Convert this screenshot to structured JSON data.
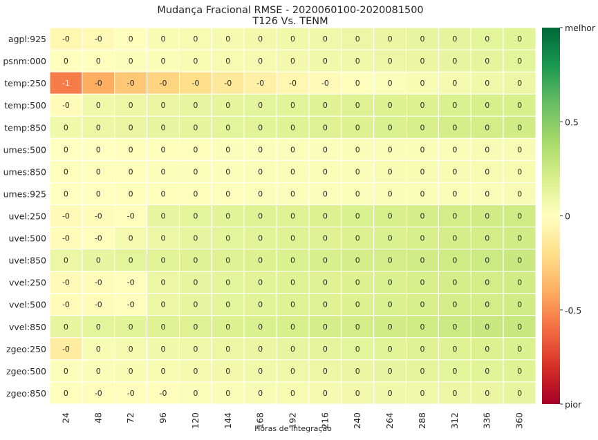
{
  "chart_data": {
    "type": "heatmap",
    "title": "Mudança Fracional RMSE - 2020060100-2020081500",
    "subtitle": "T126 Vs. TENM",
    "xlabel": "Horas de Integração",
    "x_categories": [
      "24",
      "48",
      "72",
      "96",
      "120",
      "144",
      "168",
      "192",
      "216",
      "240",
      "264",
      "288",
      "312",
      "336",
      "360"
    ],
    "y_categories": [
      "agpl:925",
      "psnm:000",
      "temp:250",
      "temp:500",
      "temp:850",
      "umes:500",
      "umes:850",
      "umes:925",
      "uvel:250",
      "uvel:500",
      "uvel:850",
      "vvel:250",
      "vvel:500",
      "vvel:850",
      "zgeo:250",
      "zgeo:500",
      "zgeo:850"
    ],
    "annotations": [
      [
        "-0",
        "-0",
        "0",
        "0",
        "0",
        "0",
        "0",
        "0",
        "0",
        "0",
        "0",
        "0",
        "0",
        "0",
        "0"
      ],
      [
        "0",
        "0",
        "0",
        "0",
        "0",
        "0",
        "0",
        "0",
        "0",
        "0",
        "0",
        "0",
        "0",
        "0",
        "0"
      ],
      [
        "-1",
        "-0",
        "-0",
        "-0",
        "-0",
        "-0",
        "-0",
        "-0",
        "-0",
        "0",
        "0",
        "0",
        "0",
        "0",
        "0"
      ],
      [
        "-0",
        "0",
        "0",
        "0",
        "0",
        "0",
        "0",
        "0",
        "0",
        "0",
        "0",
        "0",
        "0",
        "0",
        "0"
      ],
      [
        "0",
        "0",
        "0",
        "0",
        "0",
        "0",
        "0",
        "0",
        "0",
        "0",
        "0",
        "0",
        "0",
        "0",
        "0"
      ],
      [
        "0",
        "0",
        "0",
        "0",
        "0",
        "0",
        "0",
        "0",
        "0",
        "0",
        "0",
        "0",
        "0",
        "0",
        "0"
      ],
      [
        "0",
        "0",
        "0",
        "0",
        "0",
        "0",
        "0",
        "0",
        "0",
        "0",
        "0",
        "0",
        "0",
        "0",
        "0"
      ],
      [
        "0",
        "0",
        "0",
        "0",
        "0",
        "0",
        "0",
        "0",
        "0",
        "0",
        "0",
        "0",
        "0",
        "0",
        "0"
      ],
      [
        "-0",
        "-0",
        "-0",
        "0",
        "0",
        "0",
        "0",
        "0",
        "0",
        "0",
        "0",
        "0",
        "0",
        "0",
        "0"
      ],
      [
        "-0",
        "-0",
        "0",
        "0",
        "0",
        "0",
        "0",
        "0",
        "0",
        "0",
        "0",
        "0",
        "0",
        "0",
        "0"
      ],
      [
        "0",
        "0",
        "0",
        "0",
        "0",
        "0",
        "0",
        "0",
        "0",
        "0",
        "0",
        "0",
        "0",
        "0",
        "0"
      ],
      [
        "-0",
        "-0",
        "-0",
        "0",
        "0",
        "0",
        "0",
        "0",
        "0",
        "0",
        "0",
        "0",
        "0",
        "0",
        "0"
      ],
      [
        "-0",
        "-0",
        "-0",
        "0",
        "0",
        "0",
        "0",
        "0",
        "0",
        "0",
        "0",
        "0",
        "0",
        "0",
        "0"
      ],
      [
        "0",
        "0",
        "0",
        "0",
        "0",
        "0",
        "0",
        "0",
        "0",
        "0",
        "0",
        "0",
        "0",
        "0",
        "0"
      ],
      [
        "-0",
        "0",
        "0",
        "0",
        "0",
        "0",
        "0",
        "0",
        "0",
        "0",
        "0",
        "0",
        "0",
        "0",
        "0"
      ],
      [
        "0",
        "0",
        "0",
        "0",
        "0",
        "0",
        "0",
        "0",
        "0",
        "0",
        "0",
        "0",
        "0",
        "0",
        "0"
      ],
      [
        "0",
        "-0",
        "-0",
        "-0",
        "0",
        "0",
        "0",
        "0",
        "0",
        "0",
        "0",
        "0",
        "0",
        "0",
        "0"
      ]
    ],
    "values": [
      [
        -0.06,
        -0.04,
        0.01,
        0.04,
        0.05,
        0.06,
        0.07,
        0.08,
        0.09,
        0.1,
        0.11,
        0.12,
        0.13,
        0.14,
        0.15
      ],
      [
        0.01,
        0.01,
        0.02,
        0.03,
        0.04,
        0.05,
        0.06,
        0.07,
        0.08,
        0.09,
        0.1,
        0.11,
        0.12,
        0.13,
        0.14
      ],
      [
        -0.55,
        -0.4,
        -0.3,
        -0.25,
        -0.2,
        -0.14,
        -0.1,
        -0.06,
        -0.03,
        0.01,
        0.02,
        0.04,
        0.06,
        0.08,
        0.1
      ],
      [
        -0.02,
        0.08,
        0.1,
        0.11,
        0.12,
        0.13,
        0.14,
        0.15,
        0.16,
        0.17,
        0.18,
        0.18,
        0.19,
        0.2,
        0.2
      ],
      [
        0.08,
        0.1,
        0.11,
        0.12,
        0.13,
        0.14,
        0.15,
        0.16,
        0.17,
        0.18,
        0.19,
        0.2,
        0.21,
        0.22,
        0.23
      ],
      [
        0.0,
        0.0,
        0.01,
        0.01,
        0.01,
        0.02,
        0.02,
        0.02,
        0.02,
        0.03,
        0.03,
        0.03,
        0.03,
        0.04,
        0.04
      ],
      [
        0.01,
        0.01,
        0.01,
        0.02,
        0.02,
        0.02,
        0.03,
        0.03,
        0.03,
        0.03,
        0.04,
        0.04,
        0.04,
        0.05,
        0.05
      ],
      [
        0.0,
        0.0,
        0.01,
        0.01,
        0.01,
        0.01,
        0.02,
        0.02,
        0.02,
        0.02,
        0.03,
        0.03,
        0.03,
        0.03,
        0.04
      ],
      [
        -0.03,
        -0.02,
        -0.01,
        0.12,
        0.14,
        0.15,
        0.16,
        0.17,
        0.18,
        0.19,
        0.2,
        0.21,
        0.22,
        0.23,
        0.24
      ],
      [
        -0.02,
        -0.01,
        0.06,
        0.1,
        0.12,
        0.14,
        0.15,
        0.16,
        0.17,
        0.18,
        0.19,
        0.2,
        0.21,
        0.22,
        0.23
      ],
      [
        0.1,
        0.12,
        0.14,
        0.15,
        0.16,
        0.17,
        0.18,
        0.19,
        0.2,
        0.21,
        0.22,
        0.23,
        0.24,
        0.25,
        0.26
      ],
      [
        -0.03,
        -0.02,
        -0.01,
        0.1,
        0.12,
        0.14,
        0.15,
        0.16,
        0.17,
        0.18,
        0.19,
        0.2,
        0.21,
        0.22,
        0.23
      ],
      [
        -0.02,
        -0.02,
        -0.01,
        0.1,
        0.12,
        0.14,
        0.15,
        0.16,
        0.17,
        0.18,
        0.19,
        0.2,
        0.21,
        0.22,
        0.23
      ],
      [
        0.12,
        0.14,
        0.15,
        0.16,
        0.17,
        0.18,
        0.19,
        0.2,
        0.21,
        0.22,
        0.23,
        0.24,
        0.25,
        0.26,
        0.27
      ],
      [
        -0.12,
        0.04,
        0.06,
        0.08,
        0.09,
        0.1,
        0.11,
        0.12,
        0.13,
        0.14,
        0.15,
        0.16,
        0.17,
        0.18,
        0.19
      ],
      [
        0.02,
        0.03,
        0.04,
        0.05,
        0.06,
        0.07,
        0.08,
        0.09,
        0.1,
        0.11,
        0.12,
        0.13,
        0.14,
        0.15,
        0.16
      ],
      [
        0.01,
        -0.01,
        -0.01,
        -0.01,
        0.02,
        0.03,
        0.04,
        0.05,
        0.06,
        0.07,
        0.08,
        0.09,
        0.1,
        0.11,
        0.12
      ]
    ],
    "vmin": -1,
    "vmax": 1,
    "colormap": "RdYlGn",
    "colorbar": {
      "ticks": [
        {
          "value": 1,
          "label": "melhor"
        },
        {
          "value": 0.5,
          "label": "0.5"
        },
        {
          "value": 0,
          "label": "0"
        },
        {
          "value": -0.5,
          "label": "-0.5"
        },
        {
          "value": -1,
          "label": "pior"
        }
      ]
    },
    "grid": false,
    "cell_border_color": "#ffffff",
    "background_color": "#eaeaf2",
    "annotation_color_dark": "#262626",
    "annotation_color_light": "#ffffff"
  }
}
